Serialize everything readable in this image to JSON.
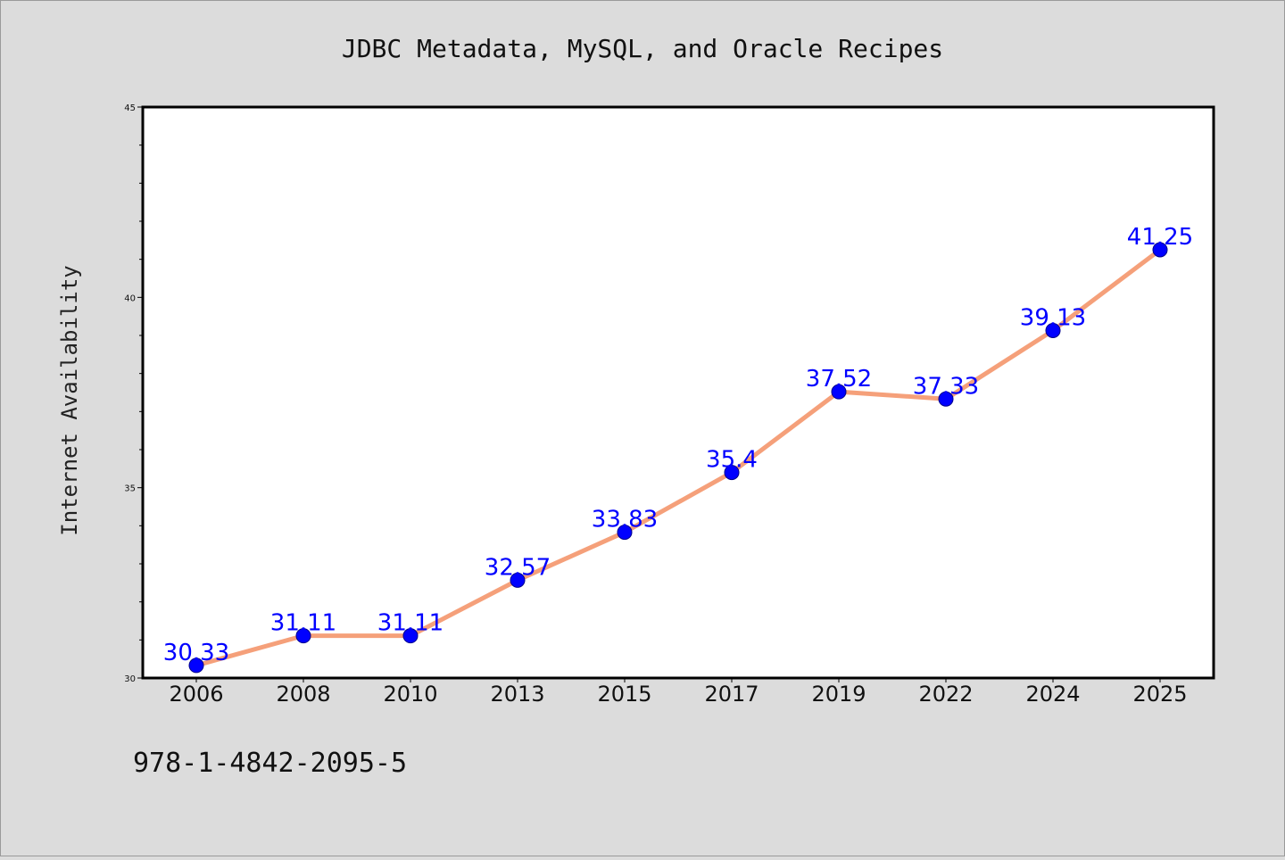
{
  "chart_data": {
    "type": "line",
    "title": "JDBC Metadata, MySQL, and Oracle Recipes",
    "xlabel": "",
    "ylabel": "Internet Availability",
    "categories": [
      "2006",
      "2008",
      "2010",
      "2013",
      "2015",
      "2017",
      "2019",
      "2022",
      "2024",
      "2025"
    ],
    "series": [
      {
        "values": [
          30.33,
          31.11,
          31.11,
          32.57,
          33.83,
          35.4,
          37.52,
          37.33,
          39.13,
          41.25
        ],
        "labels": [
          "30.33",
          "31.11",
          "31.11",
          "32.57",
          "33.83",
          "35.4",
          "37.52",
          "37.33",
          "39.13",
          "41.25"
        ]
      }
    ],
    "ylim": [
      30,
      45
    ],
    "yticks": [
      "30",
      "35",
      "40",
      "45"
    ],
    "grid": false,
    "legend": "none",
    "colors": {
      "line": "#f5a07a",
      "marker": "#0000ff",
      "data_label": "#0000ff",
      "plot_bg": "#ffffff",
      "page_bg": "#dcdcdc"
    }
  },
  "footer": {
    "text": "978-1-4842-2095-5"
  }
}
